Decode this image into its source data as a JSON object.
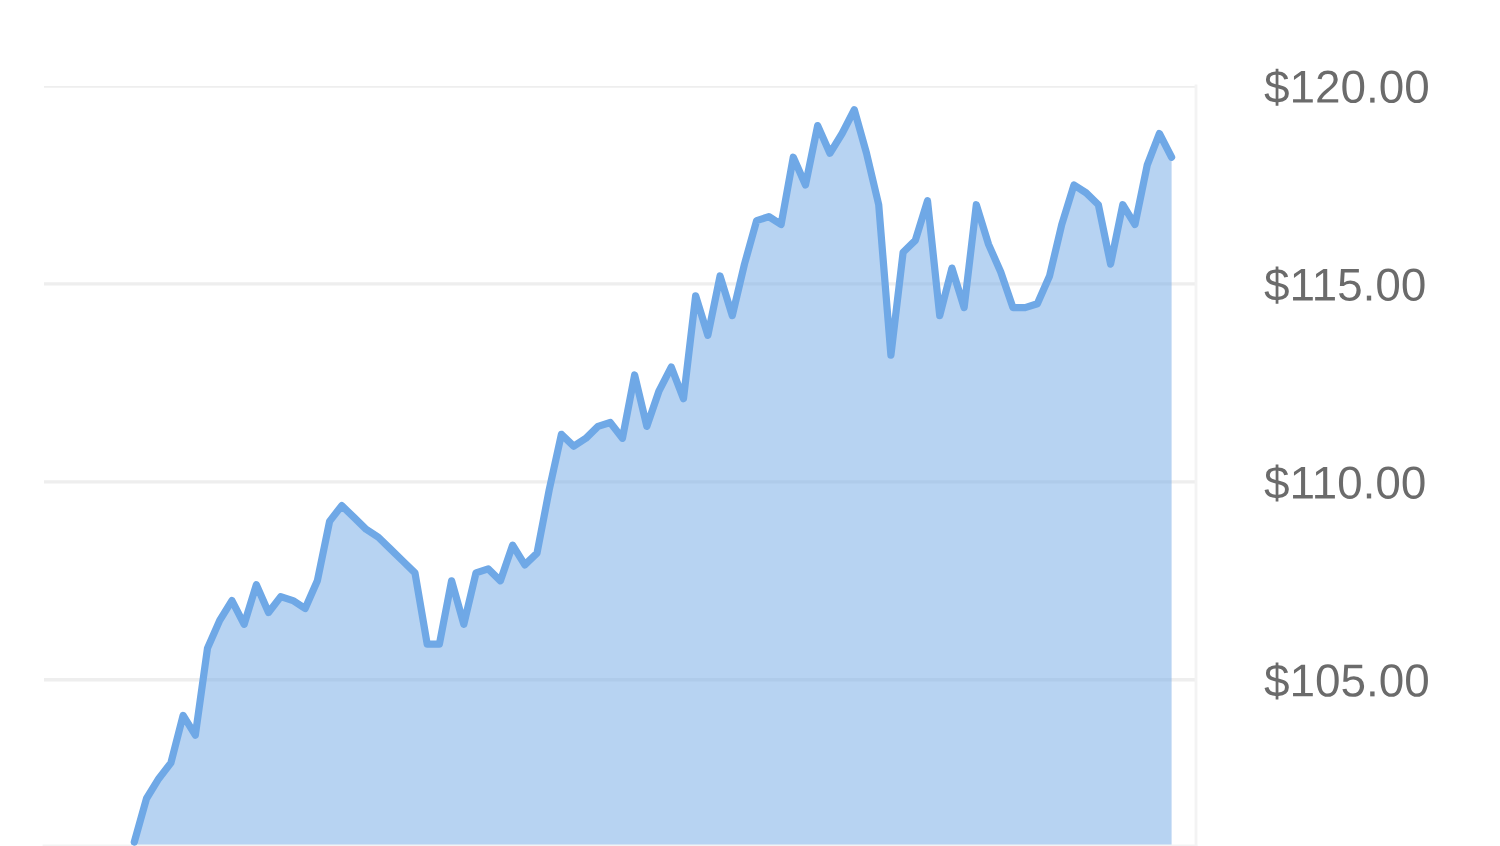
{
  "chart_data": {
    "type": "area",
    "categories": [
      null,
      null,
      null,
      null,
      null,
      null,
      null,
      null,
      null,
      null,
      null,
      null,
      null,
      null,
      null,
      null,
      null,
      null,
      null,
      null,
      null,
      null,
      null,
      null,
      null,
      null,
      null,
      null,
      null,
      null,
      null,
      null,
      null,
      null,
      null,
      null,
      null,
      null,
      null,
      null,
      null,
      null,
      null,
      null,
      null,
      null,
      null,
      null,
      null,
      null,
      null,
      null,
      null,
      null,
      null,
      null,
      null,
      null,
      null,
      null,
      null,
      null,
      null,
      null,
      null,
      null,
      null,
      null,
      null,
      null,
      null,
      null,
      null,
      null,
      null,
      null,
      null,
      null,
      null,
      null,
      null,
      null,
      null,
      null,
      null,
      null
    ],
    "series": [
      {
        "color": "#6fa8e6",
        "values": [
          100.9,
          102.0,
          102.5,
          102.9,
          104.1,
          103.6,
          105.8,
          106.5,
          107.0,
          106.4,
          107.4,
          106.7,
          107.1,
          107.0,
          106.8,
          107.5,
          109.0,
          109.4,
          109.1,
          108.8,
          108.6,
          108.3,
          108.0,
          107.7,
          105.9,
          105.9,
          107.5,
          106.4,
          107.7,
          107.8,
          107.5,
          108.4,
          107.9,
          108.2,
          109.8,
          111.2,
          110.9,
          111.1,
          111.4,
          111.5,
          111.1,
          112.7,
          111.4,
          112.3,
          112.9,
          112.1,
          114.7,
          113.7,
          115.2,
          114.2,
          115.5,
          116.6,
          116.7,
          116.5,
          118.2,
          117.5,
          119.0,
          118.3,
          118.8,
          119.4,
          118.3,
          117.0,
          113.2,
          115.8,
          116.1,
          117.1,
          114.2,
          115.4,
          114.4,
          117.0,
          116.0,
          115.3,
          114.4,
          114.4,
          114.5,
          115.2,
          116.5,
          117.5,
          117.3,
          117.0,
          115.5,
          117.0,
          116.5,
          118.0,
          118.8,
          118.2
        ]
      }
    ],
    "ylim": [
      100.8,
      120.0
    ],
    "yticks": [
      {
        "value": 105,
        "label": "$105.00"
      },
      {
        "value": 110,
        "label": "$110.00"
      },
      {
        "value": 115,
        "label": "$115.00"
      },
      {
        "value": 120,
        "label": "$120.00"
      }
    ],
    "grid": "y",
    "marker": "none",
    "line_style": "solid"
  }
}
